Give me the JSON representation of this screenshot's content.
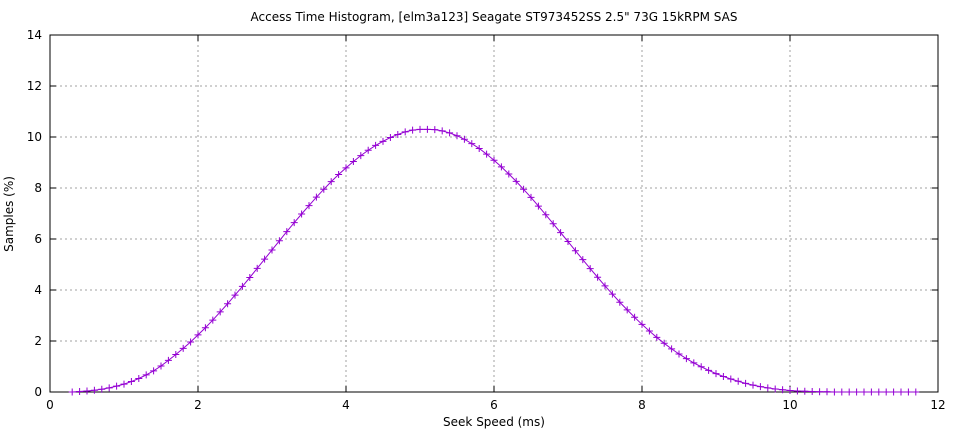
{
  "chart_data": {
    "type": "line",
    "title": "Access Time Histogram, [elm3a123] Seagate ST973452SS 2.5\" 73G 15kRPM SAS",
    "xlabel": "Seek Speed (ms)",
    "ylabel": "Samples (%)",
    "xlim": [
      0,
      12
    ],
    "ylim": [
      0,
      14
    ],
    "xticks": [
      0,
      2,
      4,
      6,
      8,
      10,
      12
    ],
    "yticks": [
      0,
      2,
      4,
      6,
      8,
      10,
      12,
      14
    ],
    "grid": true,
    "legend": "none",
    "series": [
      {
        "color": "#9400d3",
        "marker": "plus",
        "points": [
          [
            0.3,
            0.0
          ],
          [
            0.4,
            0.02
          ],
          [
            0.5,
            0.04
          ],
          [
            0.6,
            0.07
          ],
          [
            0.7,
            0.11
          ],
          [
            0.8,
            0.16
          ],
          [
            0.9,
            0.23
          ],
          [
            1.0,
            0.31
          ],
          [
            1.1,
            0.41
          ],
          [
            1.2,
            0.53
          ],
          [
            1.3,
            0.67
          ],
          [
            1.4,
            0.83
          ],
          [
            1.5,
            1.02
          ],
          [
            1.6,
            1.24
          ],
          [
            1.7,
            1.47
          ],
          [
            1.8,
            1.71
          ],
          [
            1.9,
            1.96
          ],
          [
            2.0,
            2.24
          ],
          [
            2.1,
            2.52
          ],
          [
            2.2,
            2.82
          ],
          [
            2.3,
            3.14
          ],
          [
            2.4,
            3.46
          ],
          [
            2.5,
            3.8
          ],
          [
            2.6,
            4.14
          ],
          [
            2.7,
            4.49
          ],
          [
            2.8,
            4.85
          ],
          [
            2.9,
            5.21
          ],
          [
            3.0,
            5.57
          ],
          [
            3.1,
            5.93
          ],
          [
            3.2,
            6.29
          ],
          [
            3.3,
            6.64
          ],
          [
            3.4,
            6.98
          ],
          [
            3.5,
            7.31
          ],
          [
            3.6,
            7.64
          ],
          [
            3.7,
            7.95
          ],
          [
            3.8,
            8.25
          ],
          [
            3.9,
            8.53
          ],
          [
            4.0,
            8.79
          ],
          [
            4.1,
            9.04
          ],
          [
            4.2,
            9.27
          ],
          [
            4.3,
            9.48
          ],
          [
            4.4,
            9.67
          ],
          [
            4.5,
            9.83
          ],
          [
            4.6,
            9.98
          ],
          [
            4.7,
            10.1
          ],
          [
            4.8,
            10.2
          ],
          [
            4.9,
            10.27
          ],
          [
            5.0,
            10.3
          ],
          [
            5.1,
            10.3
          ],
          [
            5.2,
            10.29
          ],
          [
            5.3,
            10.24
          ],
          [
            5.4,
            10.16
          ],
          [
            5.5,
            10.05
          ],
          [
            5.6,
            9.91
          ],
          [
            5.7,
            9.74
          ],
          [
            5.8,
            9.55
          ],
          [
            5.9,
            9.33
          ],
          [
            6.0,
            9.09
          ],
          [
            6.1,
            8.83
          ],
          [
            6.2,
            8.55
          ],
          [
            6.3,
            8.26
          ],
          [
            6.4,
            7.95
          ],
          [
            6.5,
            7.63
          ],
          [
            6.6,
            7.29
          ],
          [
            6.7,
            6.95
          ],
          [
            6.8,
            6.6
          ],
          [
            6.9,
            6.25
          ],
          [
            7.0,
            5.9
          ],
          [
            7.1,
            5.54
          ],
          [
            7.2,
            5.19
          ],
          [
            7.3,
            4.84
          ],
          [
            7.4,
            4.5
          ],
          [
            7.5,
            4.16
          ],
          [
            7.6,
            3.84
          ],
          [
            7.7,
            3.52
          ],
          [
            7.8,
            3.22
          ],
          [
            7.9,
            2.93
          ],
          [
            8.0,
            2.65
          ],
          [
            8.1,
            2.39
          ],
          [
            8.2,
            2.14
          ],
          [
            8.3,
            1.91
          ],
          [
            8.4,
            1.69
          ],
          [
            8.5,
            1.49
          ],
          [
            8.6,
            1.31
          ],
          [
            8.7,
            1.14
          ],
          [
            8.8,
            0.99
          ],
          [
            8.9,
            0.85
          ],
          [
            9.0,
            0.72
          ],
          [
            9.1,
            0.61
          ],
          [
            9.2,
            0.51
          ],
          [
            9.3,
            0.42
          ],
          [
            9.4,
            0.34
          ],
          [
            9.5,
            0.27
          ],
          [
            9.6,
            0.21
          ],
          [
            9.7,
            0.16
          ],
          [
            9.8,
            0.12
          ],
          [
            9.9,
            0.09
          ],
          [
            10.0,
            0.06
          ],
          [
            10.1,
            0.04
          ],
          [
            10.2,
            0.03
          ],
          [
            10.3,
            0.02
          ],
          [
            10.4,
            0.01
          ],
          [
            10.5,
            0.01
          ],
          [
            10.6,
            0.0
          ],
          [
            10.7,
            0.0
          ],
          [
            10.8,
            0.0
          ],
          [
            10.9,
            0.0
          ],
          [
            11.0,
            0.0
          ],
          [
            11.1,
            0.0
          ],
          [
            11.2,
            0.0
          ],
          [
            11.3,
            0.0
          ],
          [
            11.4,
            0.0
          ],
          [
            11.5,
            0.0
          ],
          [
            11.6,
            0.0
          ],
          [
            11.7,
            0.0
          ]
        ]
      }
    ]
  }
}
